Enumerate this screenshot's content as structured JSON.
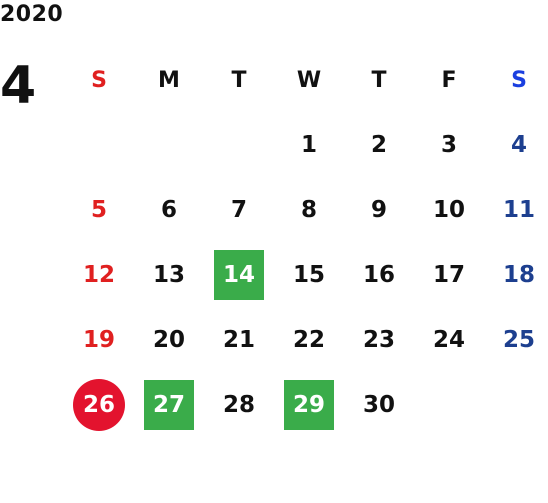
{
  "year": "2020",
  "month": "4",
  "weekdays": [
    "S",
    "M",
    "T",
    "W",
    "T",
    "F",
    "S"
  ],
  "weeks": [
    [
      "",
      "",
      "",
      "1",
      "2",
      "3",
      "4"
    ],
    [
      "5",
      "6",
      "7",
      "8",
      "9",
      "10",
      "11"
    ],
    [
      "12",
      "13",
      "14",
      "15",
      "16",
      "17",
      "18"
    ],
    [
      "19",
      "20",
      "21",
      "22",
      "23",
      "24",
      "25"
    ],
    [
      "26",
      "27",
      "28",
      "29",
      "30",
      "",
      ""
    ]
  ],
  "highlights": {
    "green": [
      "14",
      "27",
      "29"
    ],
    "red_circle": [
      "26"
    ]
  },
  "colors": {
    "sunday": "#e02020",
    "saturday_header": "#1a3fe0",
    "saturday": "#1d3f8f",
    "green_mark": "#3aac4a",
    "red_mark": "#e3132e"
  }
}
